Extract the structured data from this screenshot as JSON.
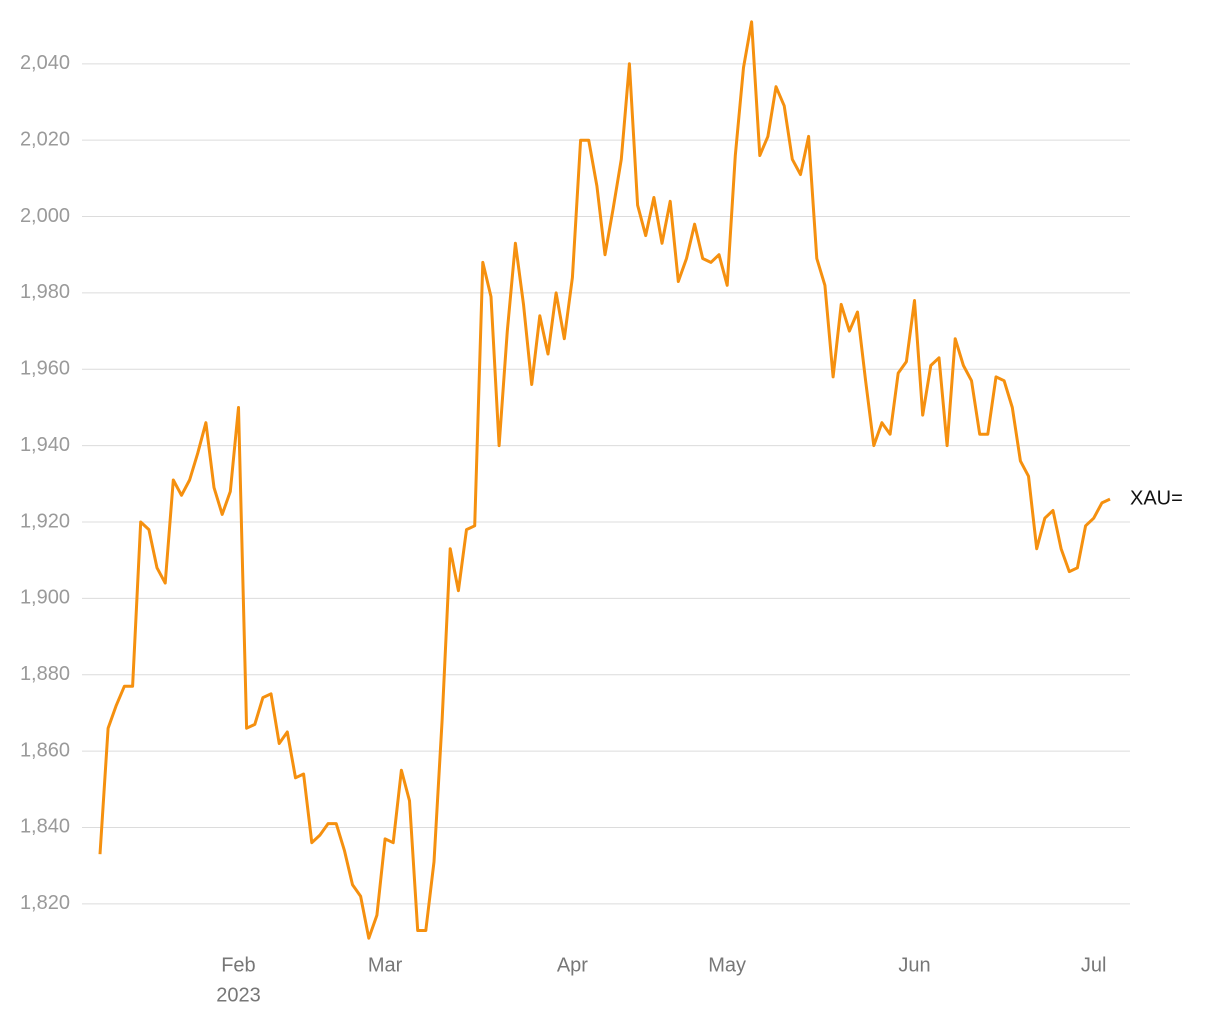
{
  "chart_data": {
    "type": "line",
    "categories": [
      null,
      null,
      null,
      null,
      null,
      null,
      null,
      null,
      null,
      null,
      null,
      null,
      null,
      null,
      null,
      null,
      null,
      "Feb",
      null,
      null,
      null,
      null,
      null,
      null,
      null,
      null,
      null,
      null,
      null,
      null,
      null,
      null,
      null,
      null,
      null,
      "Mar",
      null,
      null,
      null,
      null,
      null,
      null,
      null,
      null,
      null,
      null,
      null,
      null,
      null,
      null,
      null,
      null,
      null,
      null,
      null,
      null,
      null,
      null,
      "Apr",
      null,
      null,
      null,
      null,
      null,
      null,
      null,
      null,
      null,
      null,
      null,
      null,
      null,
      null,
      null,
      null,
      null,
      null,
      "May",
      null,
      null,
      null,
      null,
      null,
      null,
      null,
      null,
      null,
      null,
      null,
      null,
      null,
      null,
      null,
      null,
      null,
      null,
      null,
      null,
      null,
      null,
      "Jun",
      null,
      null,
      null,
      null,
      null,
      null,
      null,
      null,
      null,
      null,
      null,
      null,
      null,
      null,
      null,
      null,
      null,
      null,
      null,
      null,
      null,
      "Jul",
      null,
      null
    ],
    "year_label": "2023",
    "series": [
      {
        "name": "XAU=",
        "color": "#f5900f",
        "values": [
          1833,
          1866,
          1872,
          1877,
          1877,
          1920,
          1918,
          1908,
          1904,
          1931,
          1927,
          1931,
          1938,
          1946,
          1929,
          1922,
          1928,
          1950,
          1866,
          1867,
          1874,
          1875,
          1862,
          1865,
          1853,
          1854,
          1836,
          1838,
          1841,
          1841,
          1834,
          1825,
          1822,
          1811,
          1817,
          1837,
          1836,
          1855,
          1847,
          1813,
          1813,
          1831,
          1868,
          1913,
          1902,
          1918,
          1919,
          1988,
          1979,
          1940,
          1970,
          1993,
          1977,
          1956,
          1974,
          1964,
          1980,
          1968,
          1984,
          2020,
          2020,
          2008,
          1990,
          2002,
          2015,
          2040,
          2003,
          1995,
          2005,
          1993,
          2004,
          1983,
          1989,
          1998,
          1989,
          1988,
          1990,
          1982,
          2016,
          2039,
          2051,
          2016,
          2021,
          2034,
          2029,
          2015,
          2011,
          2021,
          1989,
          1982,
          1958,
          1977,
          1970,
          1975,
          1957,
          1940,
          1946,
          1943,
          1959,
          1962,
          1978,
          1948,
          1961,
          1963,
          1940,
          1968,
          1961,
          1957,
          1943,
          1943,
          1958,
          1957,
          1950,
          1936,
          1932,
          1913,
          1921,
          1923,
          1913,
          1907,
          1908,
          1919,
          1921,
          1925,
          1926
        ]
      }
    ],
    "ylim": [
      1810,
      2052
    ],
    "yticks": [
      {
        "value": 1820,
        "label": "1,820"
      },
      {
        "value": 1840,
        "label": "1,840"
      },
      {
        "value": 1860,
        "label": "1,860"
      },
      {
        "value": 1880,
        "label": "1,880"
      },
      {
        "value": 1900,
        "label": "1,900"
      },
      {
        "value": 1920,
        "label": "1,920"
      },
      {
        "value": 1940,
        "label": "1,940"
      },
      {
        "value": 1960,
        "label": "1,960"
      },
      {
        "value": 1980,
        "label": "1,980"
      },
      {
        "value": 2000,
        "label": "2,000"
      },
      {
        "value": 2020,
        "label": "2,020"
      },
      {
        "value": 2040,
        "label": "2,040"
      }
    ],
    "grid": true
  }
}
